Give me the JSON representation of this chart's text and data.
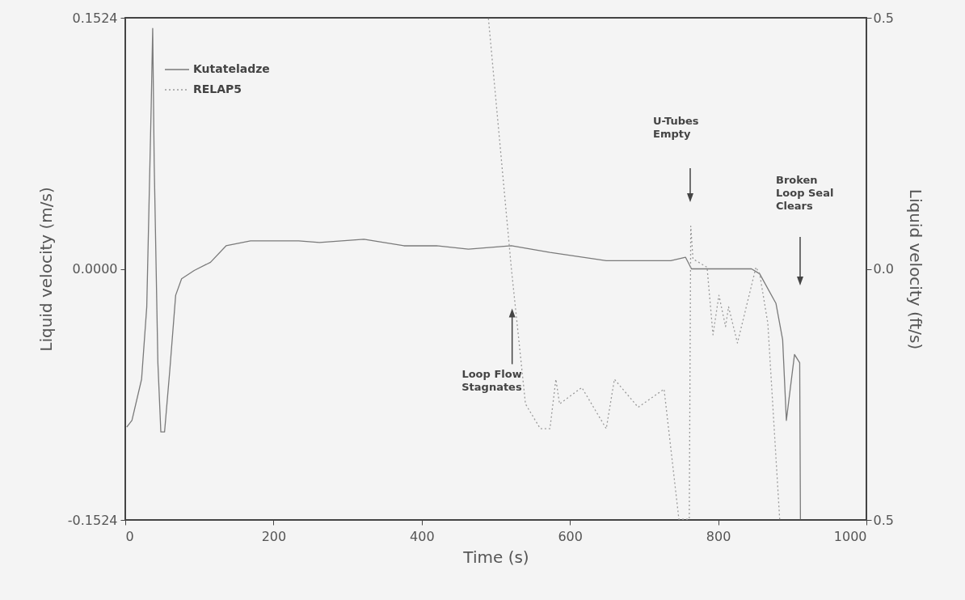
{
  "chart_data": {
    "type": "line",
    "xlabel": "Time (s)",
    "ylabel": "Liquid velocity (m/s)",
    "y2label": "Liquid velocity (ft/s)",
    "xlim": [
      0,
      1000
    ],
    "xticks": [
      0,
      200,
      400,
      600,
      800,
      1000
    ],
    "ylim": [
      -0.1524,
      0.1524
    ],
    "yticks": [
      -0.1524,
      {
        "value": 0,
        "label": "0.0000"
      },
      0.1524
    ],
    "y2lim": [
      -0.5,
      0.5
    ],
    "y2ticks": [
      {
        "value": -0.5,
        "label": "0.5"
      },
      {
        "value": 0,
        "label": "0.0"
      },
      0.5
    ],
    "grid": false,
    "legend": "top left",
    "marker": "none",
    "series": [
      {
        "name": "Kutateladze",
        "color": "#7a7a7a",
        "line_style": "solid",
        "x": [
          2,
          9,
          22,
          29,
          35,
          37,
          39,
          44,
          48,
          53,
          60,
          68,
          76,
          93,
          115,
          136,
          169,
          234,
          262,
          322,
          376,
          420,
          463,
          521,
          573,
          649,
          736,
          756,
          764,
          845,
          856,
          878,
          887,
          892,
          903,
          910,
          911
        ],
        "values": [
          -0.096,
          -0.092,
          -0.067,
          -0.023,
          0.099,
          0.146,
          0.065,
          -0.057,
          -0.099,
          -0.099,
          -0.062,
          -0.016,
          -0.006,
          -0.001,
          0.004,
          0.014,
          0.017,
          0.017,
          0.016,
          0.018,
          0.014,
          0.014,
          0.012,
          0.014,
          0.01,
          0.005,
          0.005,
          0.007,
          0.0,
          0.0,
          -0.003,
          -0.021,
          -0.043,
          -0.092,
          -0.052,
          -0.057,
          -0.152
        ]
      },
      {
        "name": "RELAP5",
        "color": "#9a9a9a",
        "line_style": "dotted",
        "x": [
          490,
          521,
          540,
          560,
          573,
          581,
          586,
          616,
          649,
          660,
          692,
          727,
          747,
          761,
          763,
          766,
          785,
          793,
          801,
          810,
          814,
          826,
          851,
          856,
          867,
          883
        ],
        "values": [
          0.152,
          0.0,
          -0.082,
          -0.097,
          -0.097,
          -0.067,
          -0.082,
          -0.072,
          -0.097,
          -0.067,
          -0.084,
          -0.073,
          -0.152,
          -0.152,
          0.026,
          0.006,
          0.001,
          -0.04,
          -0.016,
          -0.035,
          -0.023,
          -0.045,
          0.001,
          -0.003,
          -0.033,
          -0.152
        ]
      }
    ],
    "annotations": [
      {
        "text": "Loop Flow\nStagnates",
        "x": 522,
        "y": -0.024
      },
      "U-Tubes\nEmpty",
      "Broken\nLoop Seal\nClears"
    ]
  }
}
